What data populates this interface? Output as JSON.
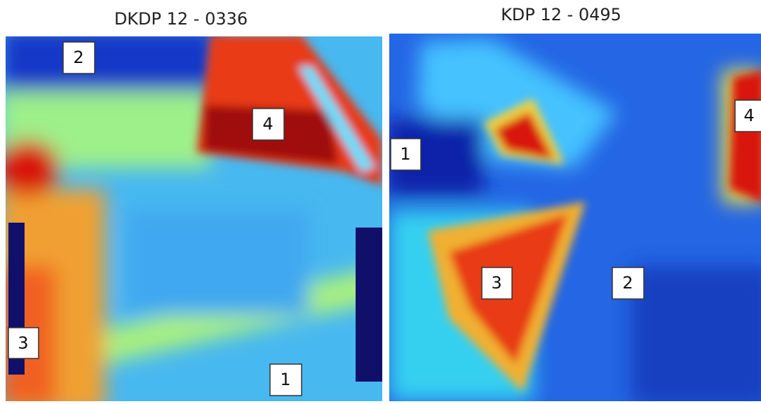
{
  "panels": [
    {
      "title": "DKDP 12 - 0336",
      "labels": [
        "2",
        "4",
        "3",
        "1"
      ]
    },
    {
      "title": "KDP 12 - 0495",
      "labels": [
        "1",
        "4",
        "3",
        "2"
      ]
    }
  ]
}
